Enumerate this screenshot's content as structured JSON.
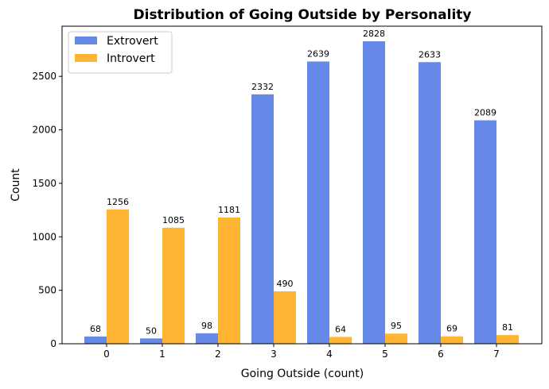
{
  "chart_data": {
    "type": "bar",
    "title": "Distribution of Going Outside by Personality",
    "xlabel": "Going Outside (count)",
    "ylabel": "Count",
    "categories": [
      "0",
      "1",
      "2",
      "3",
      "4",
      "5",
      "6",
      "7"
    ],
    "series": [
      {
        "name": "Extrovert",
        "color": "#6688e6",
        "values": [
          68,
          50,
          98,
          2332,
          2639,
          2828,
          2633,
          2089
        ]
      },
      {
        "name": "Introvert",
        "color": "#ffb533",
        "values": [
          1256,
          1085,
          1181,
          490,
          64,
          95,
          69,
          81
        ]
      }
    ],
    "ylim": [
      0,
      2969
    ],
    "yticks": [
      0,
      500,
      1000,
      1500,
      2000,
      2500
    ],
    "legend_position": "top-left",
    "grid": false
  }
}
